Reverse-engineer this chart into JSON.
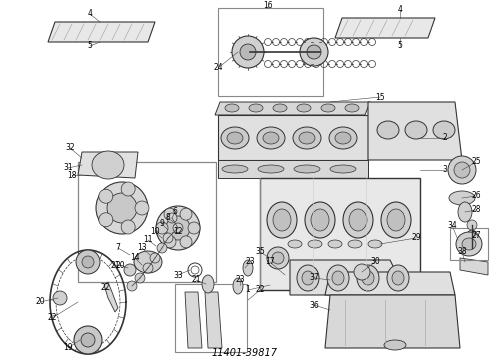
{
  "bg_color": "#ffffff",
  "line_color": "#333333",
  "gray_fill": "#d8d8d8",
  "light_fill": "#eeeeee",
  "mid_fill": "#c8c8c8",
  "fig_width": 4.9,
  "fig_height": 3.6,
  "dpi": 100,
  "title": "11401-39817",
  "title_fontsize": 7,
  "label_fontsize": 5.5,
  "label_color": "#000000"
}
